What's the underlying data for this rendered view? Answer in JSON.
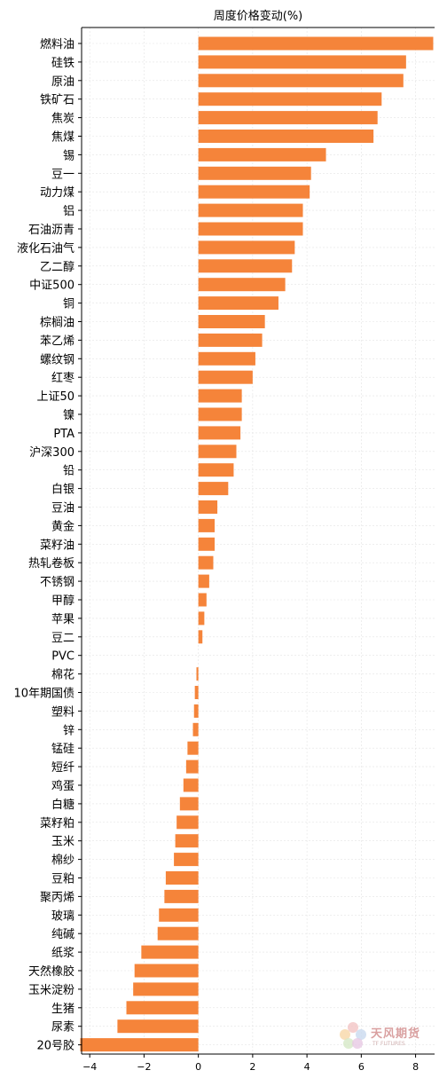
{
  "chart_data": {
    "type": "bar",
    "orientation": "horizontal",
    "title": "周度价格变动(%)",
    "xlabel": "",
    "ylabel": "",
    "xlim": [
      -4.3,
      8.7
    ],
    "xticks": [
      -4,
      -2,
      0,
      2,
      4,
      6,
      8
    ],
    "grid": true,
    "bar_color": "#f5843a",
    "categories": [
      "燃料油",
      "硅铁",
      "原油",
      "铁矿石",
      "焦炭",
      "焦煤",
      "锡",
      "豆一",
      "动力煤",
      "铝",
      "石油沥青",
      "液化石油气",
      "乙二醇",
      "中证500",
      "铜",
      "棕榈油",
      "苯乙烯",
      "螺纹钢",
      "红枣",
      "上证50",
      "镍",
      "PTA",
      "沪深300",
      "铅",
      "白银",
      "豆油",
      "黄金",
      "菜籽油",
      "热轧卷板",
      "不锈钢",
      "甲醇",
      "苹果",
      "豆二",
      "PVC",
      "棉花",
      "10年期国债",
      "塑料",
      "锌",
      "锰硅",
      "短纤",
      "鸡蛋",
      "白糖",
      "菜籽粕",
      "玉米",
      "棉纱",
      "豆粕",
      "聚丙烯",
      "玻璃",
      "纯碱",
      "纸浆",
      "天然橡胶",
      "玉米淀粉",
      "生猪",
      "尿素",
      "20号胶"
    ],
    "values": [
      8.65,
      7.65,
      7.55,
      6.75,
      6.6,
      6.45,
      4.7,
      4.15,
      4.1,
      3.85,
      3.85,
      3.55,
      3.45,
      3.2,
      2.95,
      2.45,
      2.35,
      2.1,
      2.0,
      1.6,
      1.6,
      1.55,
      1.4,
      1.3,
      1.1,
      0.7,
      0.6,
      0.6,
      0.55,
      0.4,
      0.3,
      0.22,
      0.15,
      0.0,
      -0.07,
      -0.13,
      -0.16,
      -0.2,
      -0.4,
      -0.45,
      -0.55,
      -0.68,
      -0.8,
      -0.85,
      -0.9,
      -1.2,
      -1.25,
      -1.45,
      -1.5,
      -2.1,
      -2.35,
      -2.4,
      -2.65,
      -2.98,
      -4.35
    ]
  },
  "watermark": {
    "name_cn": "天风期货",
    "name_en": "TF FUTURES"
  }
}
